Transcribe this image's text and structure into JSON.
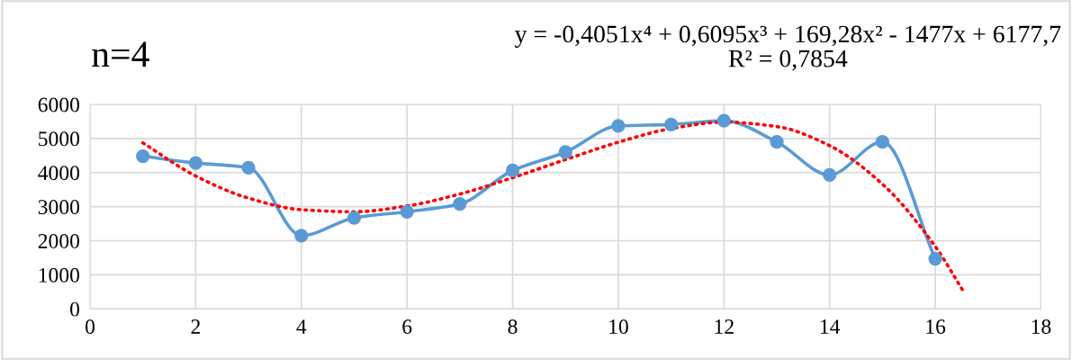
{
  "chart_data": {
    "type": "line",
    "title": "n=4",
    "annotations": [
      "y = -0,4051x⁴ + 0,6095x³ + 169,28x² - 1477x + 6177,7\nR² = 0,7854"
    ],
    "series": [
      {
        "color": "#5b9bd5",
        "marker": "circle",
        "line_style": "solid",
        "x": [
          1,
          2,
          3,
          4,
          5,
          6,
          7,
          8,
          9,
          10,
          11,
          12,
          13,
          14,
          15,
          16
        ],
        "values": [
          4480,
          4280,
          4140,
          2150,
          2670,
          2850,
          3080,
          4060,
          4600,
          5370,
          5410,
          5520,
          4900,
          3930,
          4900,
          1470
        ]
      },
      {
        "color": "#ff0000",
        "marker": "none",
        "line_style": "dotted",
        "x": [
          1,
          2,
          3,
          4,
          5,
          6,
          7,
          8,
          9,
          10,
          11,
          12,
          13,
          14,
          15,
          16,
          16.55
        ],
        "values": [
          4870,
          3900,
          3250,
          2910,
          2850,
          3020,
          3370,
          3850,
          4380,
          4890,
          5290,
          5480,
          5350,
          4790,
          3660,
          1830,
          470
        ]
      }
    ],
    "xlim": [
      0,
      18
    ],
    "xticks": [
      0,
      2,
      4,
      6,
      8,
      10,
      12,
      14,
      16,
      18
    ],
    "ylim": [
      0,
      6000
    ],
    "yticks": [
      0,
      1000,
      2000,
      3000,
      4000,
      5000,
      6000
    ],
    "grid": true,
    "legend": false
  }
}
